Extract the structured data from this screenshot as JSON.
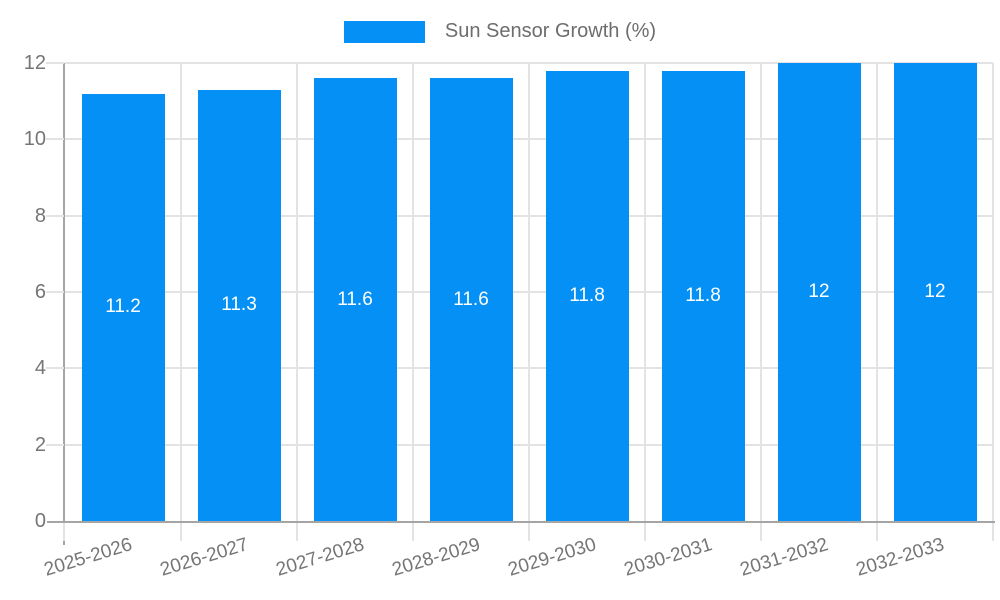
{
  "legend": {
    "label": "Sun Sensor Growth (%)"
  },
  "chart_data": {
    "type": "bar",
    "title": "Sun Sensor Growth (%)",
    "categories": [
      "2025-2026",
      "2026-2027",
      "2027-2028",
      "2028-2029",
      "2029-2030",
      "2030-2031",
      "2031-2032",
      "2032-2033"
    ],
    "series": [
      {
        "name": "Sun Sensor Growth (%)",
        "values": [
          11.2,
          11.3,
          11.6,
          11.6,
          11.8,
          11.8,
          12,
          12
        ],
        "labels": [
          "11.2",
          "11.3",
          "11.6",
          "11.6",
          "11.8",
          "11.8",
          "12",
          "12"
        ],
        "color": "#0590f5"
      }
    ],
    "xlabel": "",
    "ylabel": "",
    "ylim": [
      0,
      12
    ],
    "yticks": [
      0,
      2,
      4,
      6,
      8,
      10,
      12
    ],
    "grid": true,
    "legend_position": "top",
    "colors": {
      "bar": "#0590f5",
      "grid": "#e3e3e3",
      "axis": "#a5a5a5",
      "tick_text": "#757575",
      "legend_text": "#6d6d6d",
      "bar_label": "#ffffff",
      "background": "#ffffff"
    }
  }
}
